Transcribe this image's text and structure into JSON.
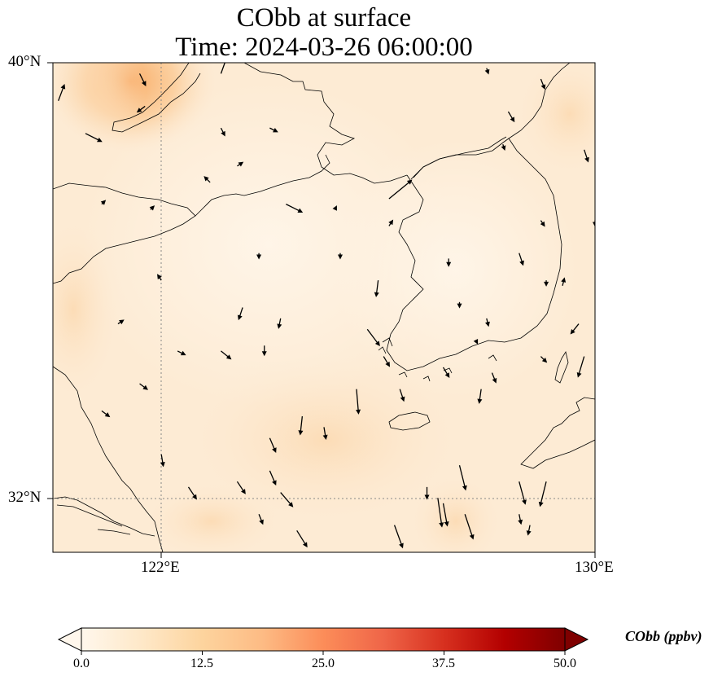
{
  "map": {
    "title_line1": "CObb at surface",
    "title_line2": "Time: 2024-03-26 06:00:00",
    "lat_ticks": [
      "40°N",
      "32°N"
    ],
    "lon_ticks": [
      "122°E",
      "130°E"
    ],
    "extent": {
      "lon_min": 120,
      "lon_max": 130,
      "lat_min": 31,
      "lat_max": 40
    },
    "gridlines": "dotted",
    "background_color": "#fdecd6",
    "high_color": "#f8b06d"
  },
  "colorbar": {
    "label": "CObb (ppbv)",
    "ticks": [
      "0.0",
      "12.5",
      "25.0",
      "37.5",
      "50.0"
    ],
    "min": 0,
    "max": 50,
    "extend": "both",
    "colormap": "OrRd",
    "colors": [
      "#fff7ec",
      "#fee8c8",
      "#fdd49e",
      "#fdbb84",
      "#fc8d59",
      "#ef6548",
      "#d7301f",
      "#b30000",
      "#7f0000"
    ]
  },
  "wind_arrows": [
    {
      "lon": 120.1,
      "lat": 39.3,
      "u": 0.3,
      "v": 0.8
    },
    {
      "lon": 120.6,
      "lat": 38.7,
      "u": 0.8,
      "v": -0.4
    },
    {
      "lon": 121.6,
      "lat": 39.8,
      "u": 0.3,
      "v": -0.6
    },
    {
      "lon": 121.7,
      "lat": 39.2,
      "u": -0.4,
      "v": -0.3
    },
    {
      "lon": 123.1,
      "lat": 39.8,
      "u": 0.5,
      "v": 1.4
    },
    {
      "lon": 123.1,
      "lat": 38.8,
      "u": 0.2,
      "v": -0.4
    },
    {
      "lon": 124.0,
      "lat": 38.8,
      "u": 0.4,
      "v": -0.2
    },
    {
      "lon": 123.4,
      "lat": 38.1,
      "u": 0.3,
      "v": 0.2
    },
    {
      "lon": 122.9,
      "lat": 37.8,
      "u": -0.3,
      "v": 0.3
    },
    {
      "lon": 124.3,
      "lat": 37.4,
      "u": 0.8,
      "v": -0.4
    },
    {
      "lon": 126.2,
      "lat": 37.5,
      "u": 1.1,
      "v": 0.9
    },
    {
      "lon": 126.2,
      "lat": 37.0,
      "u": 0.2,
      "v": 0.3
    },
    {
      "lon": 120.9,
      "lat": 37.4,
      "u": 0.2,
      "v": 0.2
    },
    {
      "lon": 121.8,
      "lat": 37.3,
      "u": 0.2,
      "v": 0.2
    },
    {
      "lon": 123.8,
      "lat": 36.5,
      "u": 0.0,
      "v": -0.3
    },
    {
      "lon": 125.3,
      "lat": 36.5,
      "u": 0.0,
      "v": -0.3
    },
    {
      "lon": 126.0,
      "lat": 36.0,
      "u": -0.1,
      "v": -0.8
    },
    {
      "lon": 122.0,
      "lat": 36.0,
      "u": -0.2,
      "v": 0.3
    },
    {
      "lon": 123.5,
      "lat": 35.5,
      "u": -0.2,
      "v": -0.6
    },
    {
      "lon": 124.2,
      "lat": 35.3,
      "u": -0.1,
      "v": -0.5
    },
    {
      "lon": 125.8,
      "lat": 35.1,
      "u": 0.6,
      "v": -0.8
    },
    {
      "lon": 126.1,
      "lat": 34.6,
      "u": 0.3,
      "v": -0.5
    },
    {
      "lon": 121.2,
      "lat": 35.2,
      "u": 0.3,
      "v": 0.2
    },
    {
      "lon": 122.3,
      "lat": 34.7,
      "u": 0.4,
      "v": -0.2
    },
    {
      "lon": 123.1,
      "lat": 34.7,
      "u": 0.5,
      "v": -0.4
    },
    {
      "lon": 123.9,
      "lat": 34.8,
      "u": 0.0,
      "v": -0.5
    },
    {
      "lon": 125.6,
      "lat": 34.0,
      "u": 0.1,
      "v": -1.2
    },
    {
      "lon": 126.4,
      "lat": 34.0,
      "u": 0.2,
      "v": -0.6
    },
    {
      "lon": 121.6,
      "lat": 34.1,
      "u": 0.4,
      "v": -0.3
    },
    {
      "lon": 120.9,
      "lat": 33.6,
      "u": 0.4,
      "v": -0.3
    },
    {
      "lon": 124.6,
      "lat": 33.5,
      "u": -0.1,
      "v": -0.9
    },
    {
      "lon": 125.0,
      "lat": 33.3,
      "u": 0.1,
      "v": -0.6
    },
    {
      "lon": 124.0,
      "lat": 33.1,
      "u": 0.3,
      "v": -0.7
    },
    {
      "lon": 122.0,
      "lat": 32.8,
      "u": 0.1,
      "v": -0.6
    },
    {
      "lon": 122.5,
      "lat": 32.2,
      "u": 0.4,
      "v": -0.6
    },
    {
      "lon": 123.4,
      "lat": 32.3,
      "u": 0.4,
      "v": -0.6
    },
    {
      "lon": 124.0,
      "lat": 32.5,
      "u": 0.3,
      "v": -0.7
    },
    {
      "lon": 124.2,
      "lat": 32.1,
      "u": 0.6,
      "v": -0.7
    },
    {
      "lon": 123.8,
      "lat": 31.7,
      "u": 0.2,
      "v": -0.5
    },
    {
      "lon": 124.5,
      "lat": 31.4,
      "u": 0.5,
      "v": -0.8
    },
    {
      "lon": 126.3,
      "lat": 31.5,
      "u": 0.4,
      "v": -1.1
    },
    {
      "lon": 127.5,
      "lat": 32.6,
      "u": 0.3,
      "v": -1.2
    },
    {
      "lon": 127.1,
      "lat": 32.0,
      "u": 0.2,
      "v": -1.4
    },
    {
      "lon": 126.9,
      "lat": 32.2,
      "u": 0.0,
      "v": -0.6
    },
    {
      "lon": 127.2,
      "lat": 31.9,
      "u": 0.2,
      "v": -1.1
    },
    {
      "lon": 127.6,
      "lat": 31.7,
      "u": 0.4,
      "v": -1.2
    },
    {
      "lon": 128.6,
      "lat": 32.3,
      "u": 0.3,
      "v": -1.1
    },
    {
      "lon": 129.1,
      "lat": 32.3,
      "u": -0.3,
      "v": -1.2
    },
    {
      "lon": 128.6,
      "lat": 31.7,
      "u": 0.1,
      "v": -0.5
    },
    {
      "lon": 128.8,
      "lat": 31.5,
      "u": -0.1,
      "v": -0.5
    },
    {
      "lon": 127.2,
      "lat": 34.4,
      "u": 0.3,
      "v": -0.5
    },
    {
      "lon": 127.9,
      "lat": 34.0,
      "u": -0.1,
      "v": -0.7
    },
    {
      "lon": 128.1,
      "lat": 34.3,
      "u": 0.2,
      "v": -0.5
    },
    {
      "lon": 129.0,
      "lat": 34.6,
      "u": 0.3,
      "v": -0.3
    },
    {
      "lon": 129.7,
      "lat": 35.2,
      "u": -0.4,
      "v": -0.5
    },
    {
      "lon": 129.4,
      "lat": 35.9,
      "u": 0.1,
      "v": 0.4
    },
    {
      "lon": 129.1,
      "lat": 36.0,
      "u": 0.0,
      "v": -0.3
    },
    {
      "lon": 129.0,
      "lat": 37.1,
      "u": 0.2,
      "v": -0.3
    },
    {
      "lon": 128.3,
      "lat": 38.5,
      "u": 0.1,
      "v": -0.3
    },
    {
      "lon": 128.4,
      "lat": 39.1,
      "u": 0.3,
      "v": -0.5
    },
    {
      "lon": 128.0,
      "lat": 39.9,
      "u": 0.1,
      "v": -0.3
    },
    {
      "lon": 129.0,
      "lat": 39.7,
      "u": 0.2,
      "v": -0.5
    },
    {
      "lon": 129.8,
      "lat": 38.4,
      "u": 0.2,
      "v": -0.6
    },
    {
      "lon": 130.0,
      "lat": 37.1,
      "u": 0.0,
      "v": -0.3
    },
    {
      "lon": 129.8,
      "lat": 34.6,
      "u": -0.3,
      "v": -1.0
    },
    {
      "lon": 128.6,
      "lat": 36.5,
      "u": 0.2,
      "v": -0.6
    },
    {
      "lon": 127.3,
      "lat": 36.4,
      "u": 0.0,
      "v": -0.4
    },
    {
      "lon": 127.5,
      "lat": 35.6,
      "u": 0.0,
      "v": -0.3
    },
    {
      "lon": 128.0,
      "lat": 35.3,
      "u": 0.1,
      "v": -0.4
    },
    {
      "lon": 127.8,
      "lat": 34.9,
      "u": 0.1,
      "v": -0.2
    },
    {
      "lon": 125.2,
      "lat": 37.3,
      "u": 0.1,
      "v": 0.2
    }
  ]
}
